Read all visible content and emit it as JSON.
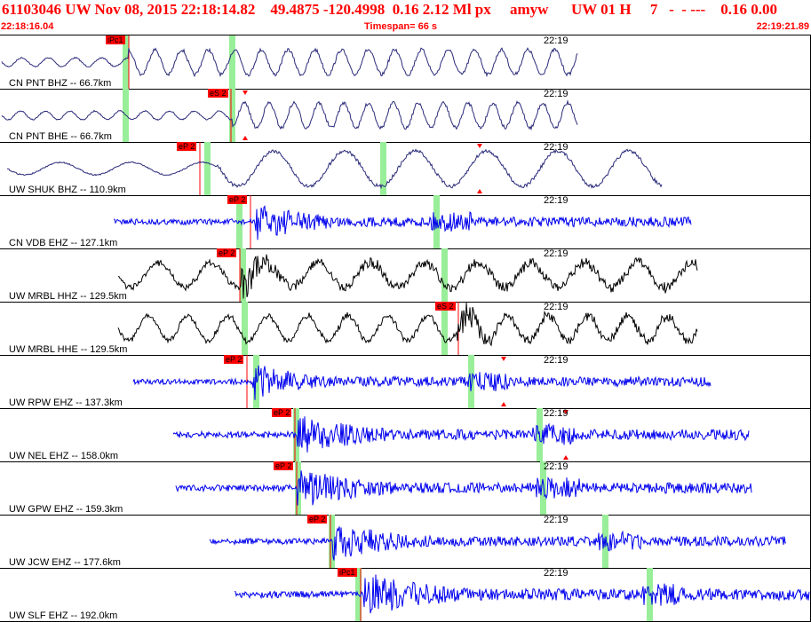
{
  "header": {
    "title": "61103046 UW Nov 08, 2015 22:18:14.82    49.4875 -120.4998  0.16 2.12 Ml px     amyw      UW 01 H     7   -  - ---    0.16 0.00",
    "start_time": "22:18:16.04",
    "timespan": "Timespan=  66 s",
    "end_time": "22:19:21.89"
  },
  "colors": {
    "header_text": "#ff0000",
    "pick": "#ff0000",
    "window": "#99ee99",
    "trace_blue": "#0000ee",
    "trace_navy": "#2a2a7a",
    "trace_black": "#000000"
  },
  "traces": [
    {
      "label": "CN PNT BHZ -- 66.7km",
      "tick": "22:19",
      "pick": "iPc1",
      "color": "navy"
    },
    {
      "label": "CN PNT BHE -- 66.7km",
      "tick": "22:19",
      "pick": "eS 2",
      "color": "navy"
    },
    {
      "label": "UW SHUK BHZ -- 110.9km",
      "tick": "22:19",
      "pick": "eP 2",
      "color": "navy"
    },
    {
      "label": "CN VDB EHZ -- 127.1km",
      "tick": "22:19",
      "pick": "eP 2",
      "color": "blue"
    },
    {
      "label": "UW MRBL HHZ -- 129.5km",
      "tick": "22:19",
      "pick": "eP 2",
      "color": "black"
    },
    {
      "label": "UW MRBL HHE -- 129.5km",
      "tick": "22:19",
      "pick": "eS 2",
      "color": "black"
    },
    {
      "label": "UW RPW EHZ -- 137.3km",
      "tick": "22:19",
      "pick": "eP 2",
      "color": "blue"
    },
    {
      "label": "UW NEL EHZ -- 158.0km",
      "tick": "22:19",
      "pick": "eP 2",
      "color": "blue"
    },
    {
      "label": "UW GPW EHZ -- 159.3km",
      "tick": "22:19",
      "pick": "eP 2",
      "color": "blue"
    },
    {
      "label": "UW JCW EHZ -- 177.6km",
      "tick": "22:19",
      "pick": "eP 2",
      "color": "blue"
    },
    {
      "label": "UW SLF EHZ -- 192.0km",
      "tick": "22:19",
      "pick": "iPc1",
      "color": "blue"
    }
  ]
}
